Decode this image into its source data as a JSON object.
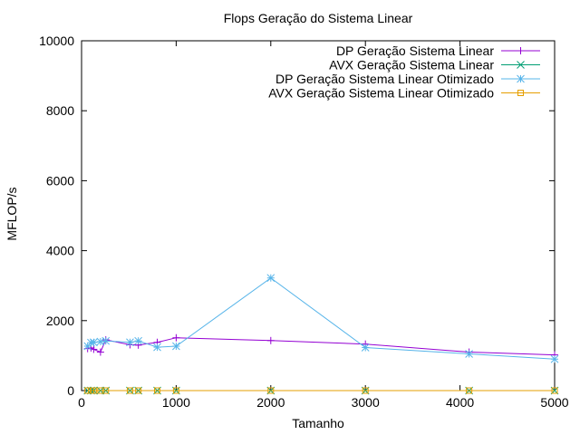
{
  "chart_data": {
    "type": "line",
    "title": "Flops Geração do Sistema Linear",
    "xlabel": "Tamanho",
    "ylabel": "MFLOP/s",
    "xlim": [
      0,
      5000
    ],
    "ylim": [
      0,
      10000
    ],
    "xticks": [
      0,
      1000,
      2000,
      3000,
      4000,
      5000
    ],
    "yticks": [
      0,
      2000,
      4000,
      6000,
      8000,
      10000
    ],
    "grid": false,
    "legend_position": "top-right",
    "series": [
      {
        "name": "DP Geração Sistema Linear",
        "color": "#9400d3",
        "marker": "plus",
        "points": [
          [
            64,
            1200
          ],
          [
            100,
            1220
          ],
          [
            128,
            1180
          ],
          [
            200,
            1100
          ],
          [
            256,
            1450
          ],
          [
            512,
            1310
          ],
          [
            600,
            1300
          ],
          [
            800,
            1380
          ],
          [
            1000,
            1510
          ],
          [
            2000,
            1430
          ],
          [
            3000,
            1330
          ],
          [
            4096,
            1100
          ],
          [
            5000,
            1020
          ]
        ]
      },
      {
        "name": "AVX Geração Sistema Linear",
        "color": "#009e73",
        "marker": "cross",
        "points": [
          [
            64,
            0
          ],
          [
            100,
            0
          ],
          [
            128,
            0
          ],
          [
            200,
            0
          ],
          [
            256,
            0
          ],
          [
            512,
            0
          ],
          [
            600,
            0
          ],
          [
            800,
            0
          ],
          [
            1000,
            0
          ],
          [
            2000,
            0
          ],
          [
            3000,
            0
          ],
          [
            4096,
            0
          ],
          [
            5000,
            0
          ]
        ]
      },
      {
        "name": "DP  Geração Sistema Linear Otimizado",
        "color": "#56b4e9",
        "marker": "star",
        "points": [
          [
            64,
            1270
          ],
          [
            100,
            1370
          ],
          [
            128,
            1380
          ],
          [
            200,
            1400
          ],
          [
            256,
            1420
          ],
          [
            512,
            1380
          ],
          [
            600,
            1420
          ],
          [
            800,
            1240
          ],
          [
            1000,
            1270
          ],
          [
            2000,
            3220
          ],
          [
            3000,
            1230
          ],
          [
            4096,
            1050
          ],
          [
            5000,
            900
          ]
        ]
      },
      {
        "name": "AVX Geração Sistema Linear Otimizado",
        "color": "#e69f00",
        "marker": "square",
        "points": [
          [
            64,
            0
          ],
          [
            100,
            0
          ],
          [
            128,
            0
          ],
          [
            200,
            0
          ],
          [
            256,
            0
          ],
          [
            512,
            0
          ],
          [
            600,
            0
          ],
          [
            800,
            0
          ],
          [
            1000,
            0
          ],
          [
            2000,
            0
          ],
          [
            3000,
            0
          ],
          [
            4096,
            0
          ],
          [
            5000,
            0
          ]
        ]
      }
    ]
  }
}
